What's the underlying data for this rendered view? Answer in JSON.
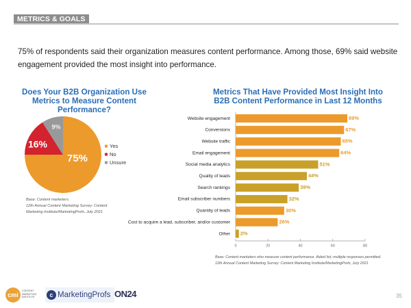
{
  "header": {
    "section_label": "METRICS & GOALS"
  },
  "intro_text": "75% of respondents said their organization measures content performance. Among those, 69% said website engagement provided the most insight into performance.",
  "colors": {
    "orange": "#ec9a2b",
    "red": "#d2232f",
    "gray": "#999999",
    "olive": "#b3a52c",
    "title_blue": "#2a6db5"
  },
  "chart_data": [
    {
      "type": "pie",
      "title": "Does Your B2B Organization Use Metrics to Measure Content Performance?",
      "categories": [
        "Yes",
        "No",
        "Unsure"
      ],
      "values": [
        75,
        16,
        9
      ],
      "labels": [
        "75%",
        "16%",
        "9%"
      ],
      "colors": [
        "#ec9a2b",
        "#d2232f",
        "#999999"
      ],
      "legend_position": "right",
      "base_note": [
        "Base: Content marketers.",
        "12th Annual Content Marketing Survey: Content",
        "Marketing Institute/MarketingProfs, July 2021"
      ]
    },
    {
      "type": "bar",
      "orientation": "horizontal",
      "title": "Metrics That Have Provided Most Insight Into B2B Content Performance in Last 12 Months",
      "categories": [
        "Website engagement",
        "Conversions",
        "Website traffic",
        "Email engagement",
        "Social media analytics",
        "Quality of leads",
        "Search rankings",
        "Email subscriber numbers",
        "Quantity of leads",
        "Cost to acquire a lead, subscriber, and/or customer",
        "Other"
      ],
      "values": [
        69,
        67,
        65,
        64,
        51,
        44,
        39,
        32,
        30,
        26,
        2
      ],
      "labels": [
        "69%",
        "67%",
        "65%",
        "64%",
        "51%",
        "44%",
        "39%",
        "32%",
        "30%",
        "26%",
        "2%"
      ],
      "xlim": [
        0,
        80
      ],
      "xticks": [
        0,
        20,
        40,
        60,
        80
      ],
      "xlabel": "",
      "ylabel": "",
      "grid": false,
      "base_note": [
        "Base: Content marketers who measure content performance. Aided list; multiple responses permitted.",
        "12th Annual Content Marketing Survey: Content Marketing Institute/MarketingProfs, July 2021"
      ]
    }
  ],
  "footer": {
    "logos": [
      "CONTENT MARKETING INSTITUTE",
      "MarketingProfs",
      "ON24"
    ],
    "cmi_initials": "cmi",
    "cmi_text": "CONTENT MARKETING INSTITUTE",
    "mp_icon": "c",
    "mp_text": "MarketingProfs",
    "on24_text": "ON24",
    "page_number": "35"
  }
}
